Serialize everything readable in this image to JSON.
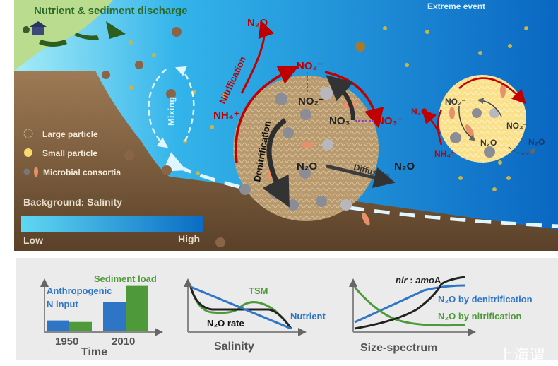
{
  "top": {
    "discharge_label": "Nutrient & sediment discharge",
    "extreme_label": "Extreme event",
    "mixing_label": "Mixing",
    "legend": {
      "large_particle": "Large particle",
      "small_particle": "Small particle",
      "microbial": "Microbial consortia"
    },
    "salinity": {
      "title": "Background: Salinity",
      "low": "Low",
      "high": "High",
      "low_color": "#5fd8f2",
      "high_color": "#0a6cc4"
    },
    "large_particle": {
      "nitrification": "Nitrification",
      "denitrification": "Denitrification",
      "diffusion": "Diffusion",
      "n2o_top": "N₂O",
      "no2_out": "NO₂⁻",
      "no2_in": "NO₂⁻",
      "no3_in": "NO₃⁻",
      "no3_out": "NO₃⁻",
      "nh4": "NH₄⁺",
      "n2o_in": "N₂O",
      "n2o_out": "N₂O"
    },
    "small_particle": {
      "no2": "NO₂⁻",
      "no3": "NO₃⁻",
      "n2o_in": "N₂O",
      "n2o_left": "N₂O",
      "n2o_right": "N₂O",
      "nh4": "NH₄⁺"
    },
    "colors": {
      "nitrification": "#c00000",
      "denitrification": "#333333",
      "exchange": "#8e3fc4",
      "land": "#9a7550"
    }
  },
  "panels": [
    {
      "xlabel": "Time",
      "categories": [
        "1950",
        "2010"
      ],
      "series": [
        {
          "name": "Anthropogenic N input",
          "label_lines": [
            "Anthropogenic",
            "N input"
          ],
          "color": "#2e75c6",
          "values": [
            0.22,
            0.6
          ]
        },
        {
          "name": "Sediment load",
          "color": "#4e9a3a",
          "values": [
            0.19,
            0.92
          ]
        }
      ]
    },
    {
      "xlabel": "Salinity",
      "curves": {
        "tsm": "TSM",
        "nutrient": "Nutrient",
        "n2o_rate": "N₂O rate"
      }
    },
    {
      "xlabel": "Size-spectrum",
      "curves": {
        "ratio_italic_1": "nir",
        "ratio_sep": " : ",
        "ratio_italic_2": "amo",
        "ratio_end": "A",
        "denit": "N₂O by denitrification",
        "nit": "N₂O by nitrification"
      }
    }
  ],
  "watermark": "上海谓"
}
